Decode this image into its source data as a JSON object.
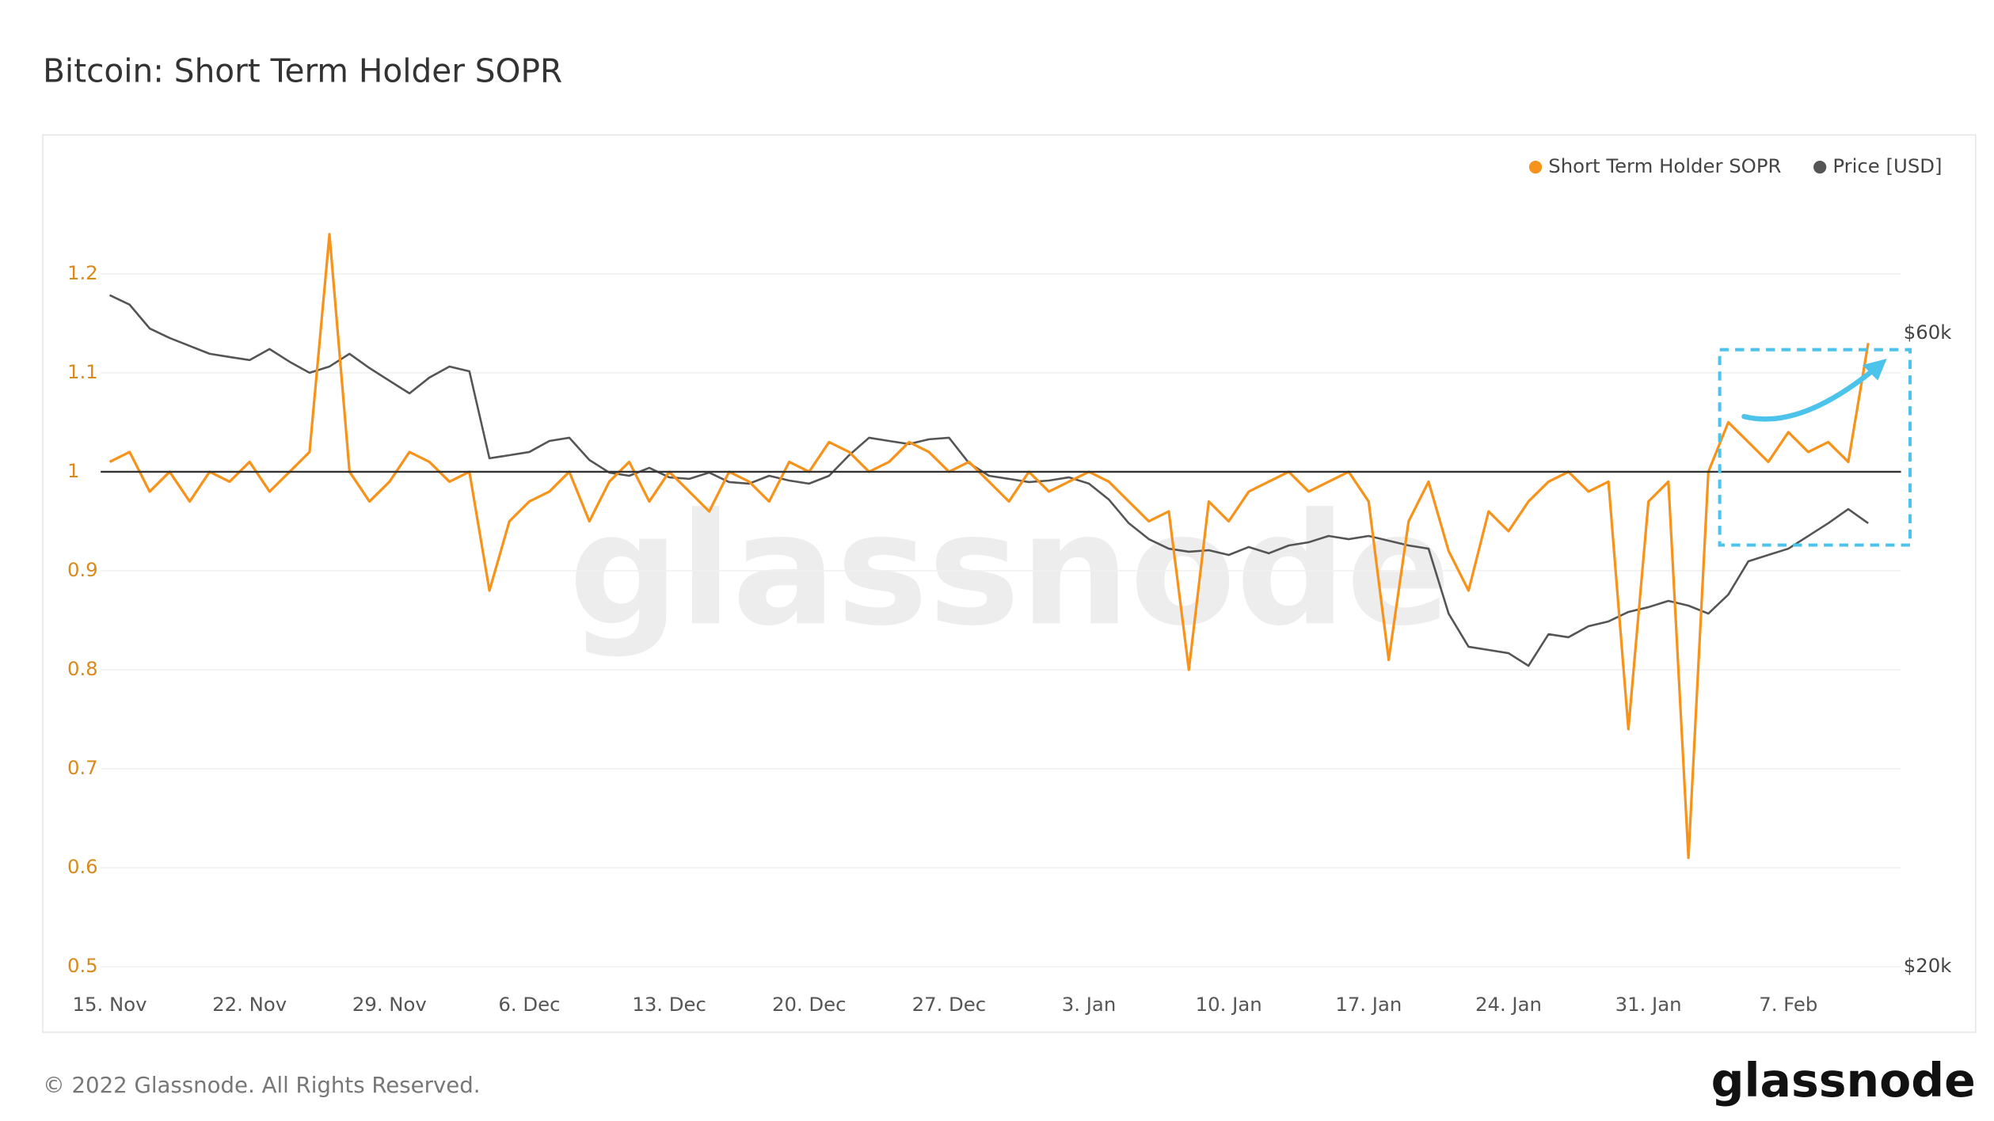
{
  "chart_data": {
    "type": "line",
    "title": "Bitcoin: Short Term Holder SOPR",
    "footer": "© 2022 Glassnode. All Rights Reserved.",
    "watermark": "glassnode",
    "logo": "glassnode",
    "categories": [
      "15. Nov",
      null,
      null,
      null,
      null,
      null,
      null,
      "22. Nov",
      null,
      null,
      null,
      null,
      null,
      null,
      "29. Nov",
      null,
      null,
      null,
      null,
      null,
      null,
      "6. Dec",
      null,
      null,
      null,
      null,
      null,
      null,
      "13. Dec",
      null,
      null,
      null,
      null,
      null,
      null,
      "20. Dec",
      null,
      null,
      null,
      null,
      null,
      null,
      "27. Dec",
      null,
      null,
      null,
      null,
      null,
      null,
      "3. Jan",
      null,
      null,
      null,
      null,
      null,
      null,
      "10. Jan",
      null,
      null,
      null,
      null,
      null,
      null,
      "17. Jan",
      null,
      null,
      null,
      null,
      null,
      null,
      "24. Jan",
      null,
      null,
      null,
      null,
      null,
      null,
      "31. Jan",
      null,
      null,
      null,
      null,
      null,
      null,
      "7. Feb",
      null,
      null,
      null,
      null
    ],
    "series": [
      {
        "name": "Short Term Holder SOPR",
        "color": "#f7931a",
        "axis": "y",
        "values": [
          1.01,
          1.02,
          0.98,
          1.0,
          0.97,
          1.0,
          0.99,
          1.01,
          0.98,
          1.0,
          1.02,
          1.24,
          1.0,
          0.97,
          0.99,
          1.02,
          1.01,
          0.99,
          1.0,
          0.88,
          0.95,
          0.97,
          0.98,
          1.0,
          0.95,
          0.99,
          1.01,
          0.97,
          1.0,
          0.98,
          0.96,
          1.0,
          0.99,
          0.97,
          1.01,
          1.0,
          1.03,
          1.02,
          1.0,
          1.01,
          1.03,
          1.02,
          1.0,
          1.01,
          0.99,
          0.97,
          1.0,
          0.98,
          0.99,
          1.0,
          0.99,
          0.97,
          0.95,
          0.96,
          0.8,
          0.97,
          0.95,
          0.98,
          0.99,
          1.0,
          0.98,
          0.99,
          1.0,
          0.97,
          0.81,
          0.95,
          0.99,
          0.92,
          0.88,
          0.96,
          0.94,
          0.97,
          0.99,
          1.0,
          0.98,
          0.99,
          0.74,
          0.97,
          0.99,
          0.61,
          1.0,
          1.05,
          1.03,
          1.01,
          1.04,
          1.02,
          1.03,
          1.01,
          1.13
        ]
      },
      {
        "name": "Price [USD]",
        "color": "#555555",
        "axis": "y2",
        "values": [
          62400,
          61800,
          60300,
          59700,
          59200,
          58700,
          58500,
          58300,
          59000,
          58200,
          57500,
          57900,
          58700,
          57800,
          57000,
          56200,
          57200,
          57900,
          57600,
          52100,
          52300,
          52500,
          53200,
          53400,
          52000,
          51200,
          51000,
          51500,
          50900,
          50800,
          51200,
          50600,
          50500,
          51000,
          50700,
          50500,
          51000,
          52300,
          53400,
          53200,
          53000,
          53300,
          53400,
          51800,
          51000,
          50800,
          50600,
          50700,
          50900,
          50500,
          49500,
          48000,
          47000,
          46400,
          46200,
          46300,
          46000,
          46500,
          46100,
          46600,
          46800,
          47200,
          47000,
          47200,
          46900,
          46600,
          46400,
          42300,
          40200,
          40000,
          39800,
          39000,
          41000,
          40800,
          41500,
          41800,
          42400,
          42700,
          43100,
          42800,
          42300,
          43500,
          45600,
          46000,
          46400,
          47200,
          48000,
          48900,
          48000
        ]
      }
    ],
    "ylim": [
      0.5,
      1.3
    ],
    "yticks": [
      0.5,
      0.6,
      0.7,
      0.8,
      0.9,
      1,
      1.1,
      1.2
    ],
    "y2lim": [
      20000,
      70000
    ],
    "y2ticks": [
      {
        "value": 20000,
        "label": "$20k"
      },
      {
        "value": 60000,
        "label": "$60k"
      }
    ],
    "reference_line": 1,
    "grid": true,
    "legend": "top-right"
  }
}
